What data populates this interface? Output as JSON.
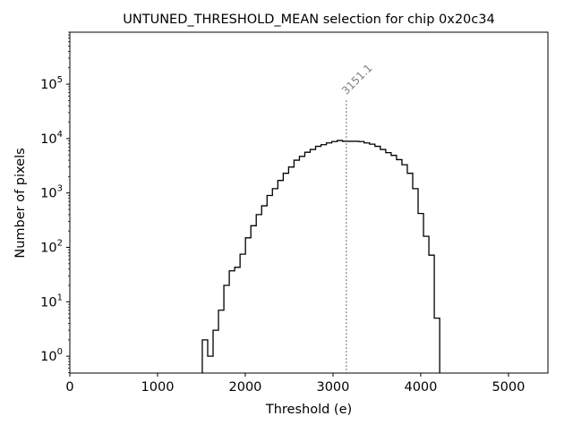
{
  "chart_data": {
    "type": "histogram",
    "title": "UNTUNED_THRESHOLD_MEAN selection for chip 0x20c34",
    "xlabel": "Threshold (e)",
    "ylabel": "Number of pixels",
    "xlim": [
      0,
      5450
    ],
    "ylim": [
      0.49,
      900000
    ],
    "yscale": "log",
    "xticks": [
      0,
      1000,
      2000,
      3000,
      4000,
      5000
    ],
    "xtick_labels": [
      "0",
      "1000",
      "2000",
      "3000",
      "4000",
      "5000"
    ],
    "yticks": [
      1,
      10,
      100,
      1000,
      10000,
      100000
    ],
    "ytick_labels": [
      "10^0",
      "10^1",
      "10^2",
      "10^3",
      "10^4",
      "10^5"
    ],
    "bin_start": 1510,
    "bin_width": 61.5,
    "counts": [
      2,
      1,
      3,
      7,
      20,
      37,
      43,
      75,
      150,
      250,
      400,
      580,
      900,
      1200,
      1700,
      2300,
      3000,
      4000,
      4700,
      5600,
      6300,
      7200,
      7700,
      8300,
      8800,
      9200,
      8900,
      8900,
      8900,
      8800,
      8300,
      7900,
      7200,
      6300,
      5500,
      4900,
      4100,
      3300,
      2300,
      1200,
      420,
      160,
      72,
      5
    ],
    "annotation": {
      "x": 3151.1,
      "label": "3151.1",
      "line_top_value": 50000,
      "color": "#808080"
    },
    "line_color": "#000000",
    "grid": false
  }
}
